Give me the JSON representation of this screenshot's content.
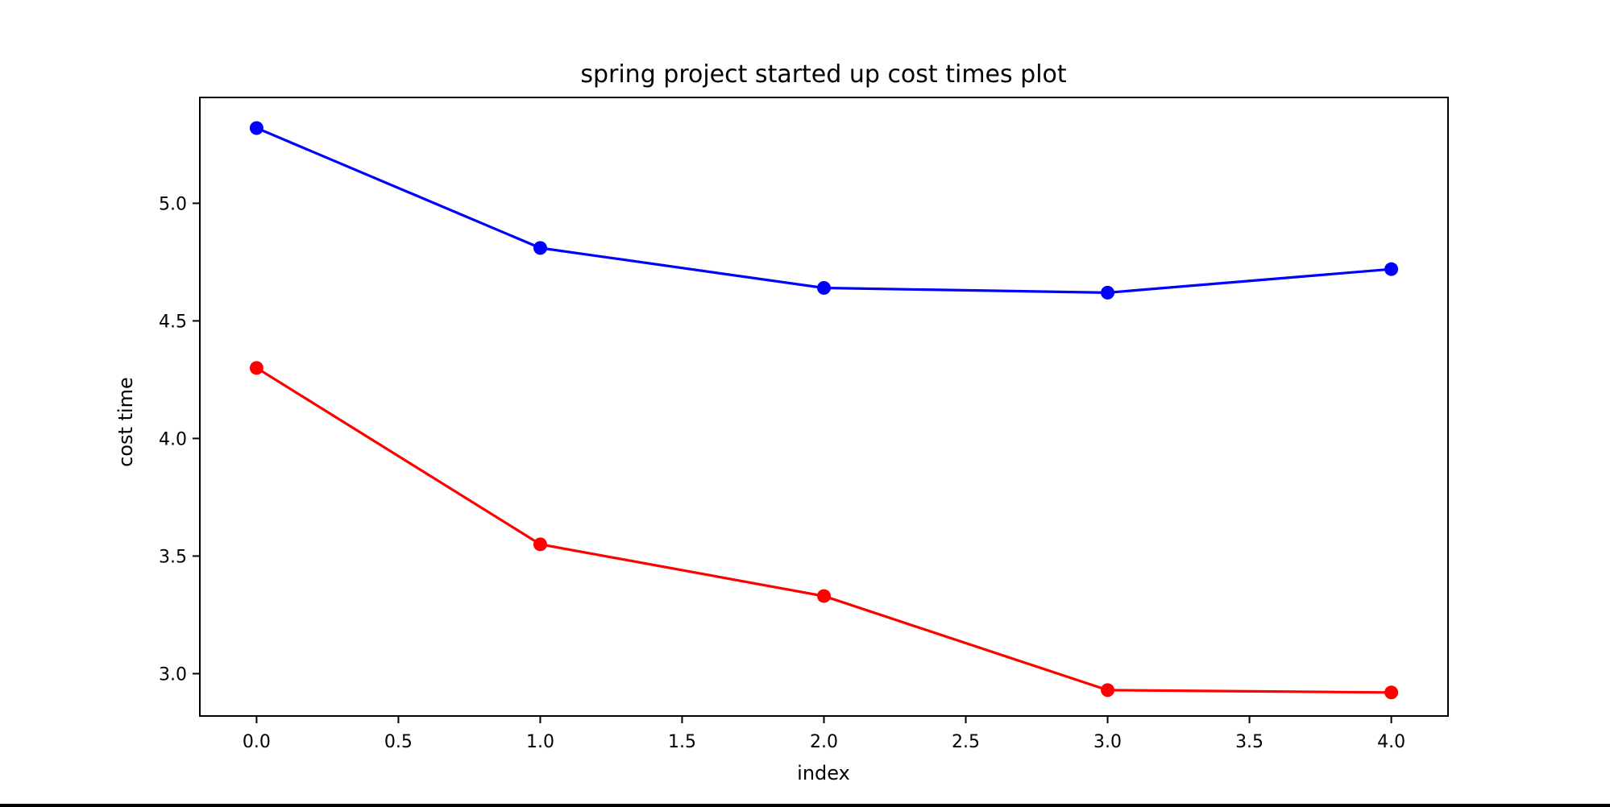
{
  "chart_data": {
    "type": "line",
    "title": "spring project started up cost times plot",
    "xlabel": "index",
    "ylabel": "cost time",
    "x": [
      0,
      1,
      2,
      3,
      4
    ],
    "xlim": [
      -0.2,
      4.2
    ],
    "ylim": [
      2.82,
      5.45
    ],
    "xticks": [
      0.0,
      0.5,
      1.0,
      1.5,
      2.0,
      2.5,
      3.0,
      3.5,
      4.0
    ],
    "xtick_labels": [
      "0.0",
      "0.5",
      "1.0",
      "1.5",
      "2.0",
      "2.5",
      "3.0",
      "3.5",
      "4.0"
    ],
    "yticks": [
      3.0,
      3.5,
      4.0,
      4.5,
      5.0
    ],
    "ytick_labels": [
      "3.0",
      "3.5",
      "4.0",
      "4.5",
      "5.0"
    ],
    "grid": false,
    "legend": "none",
    "series": [
      {
        "color": "#0000ff",
        "marker": "circle",
        "values": [
          5.32,
          4.81,
          4.64,
          4.62,
          4.72
        ]
      },
      {
        "color": "#ff0000",
        "marker": "circle",
        "values": [
          4.3,
          3.55,
          3.33,
          2.93,
          2.92
        ]
      }
    ]
  }
}
